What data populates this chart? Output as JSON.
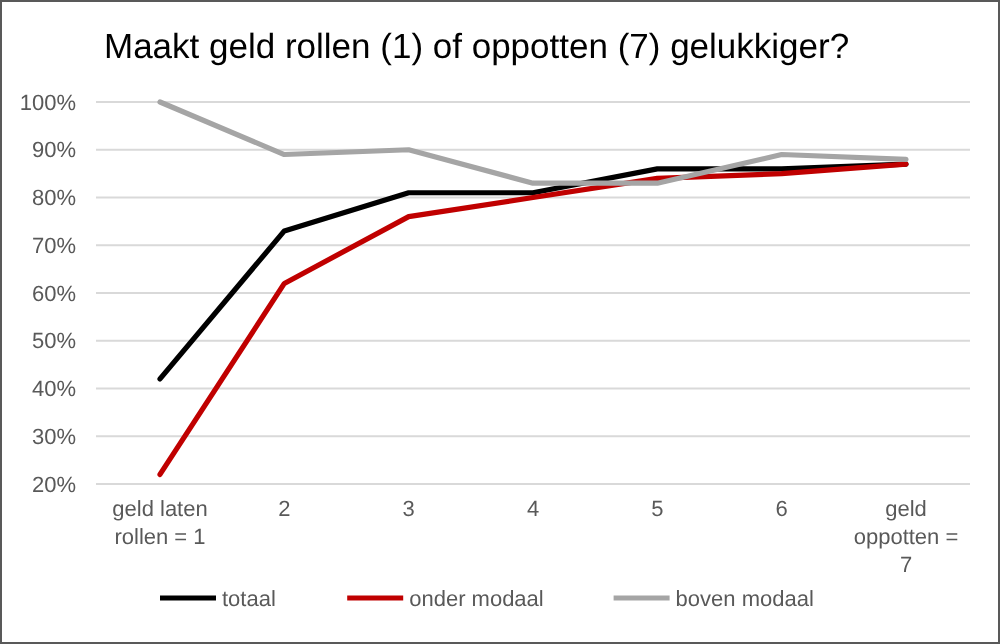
{
  "chart_data": {
    "type": "line",
    "title": "Maakt geld rollen (1) of oppotten (7) gelukkiger?",
    "categories": [
      "geld laten rollen = 1",
      "2",
      "3",
      "4",
      "5",
      "6",
      "geld oppotten = 7"
    ],
    "series": [
      {
        "name": "totaal",
        "color": "#000000",
        "values": [
          42,
          73,
          81,
          81,
          86,
          86,
          87
        ]
      },
      {
        "name": "onder modaal",
        "color": "#c00000",
        "values": [
          22,
          62,
          76,
          80,
          84,
          85,
          87
        ]
      },
      {
        "name": "boven modaal",
        "color": "#a5a5a5",
        "values": [
          100,
          89,
          90,
          83,
          83,
          89,
          88
        ]
      }
    ],
    "ylim": [
      20,
      100
    ],
    "yticks": [
      {
        "value": 20,
        "label": "20%"
      },
      {
        "value": 30,
        "label": "30%"
      },
      {
        "value": 40,
        "label": "40%"
      },
      {
        "value": 50,
        "label": "50%"
      },
      {
        "value": 60,
        "label": "60%"
      },
      {
        "value": 70,
        "label": "70%"
      },
      {
        "value": 80,
        "label": "80%"
      },
      {
        "value": 90,
        "label": "90%"
      },
      {
        "value": 100,
        "label": "100%"
      }
    ],
    "grid": "y",
    "legend": "bottom",
    "marker": "none",
    "line_style": "solid"
  }
}
